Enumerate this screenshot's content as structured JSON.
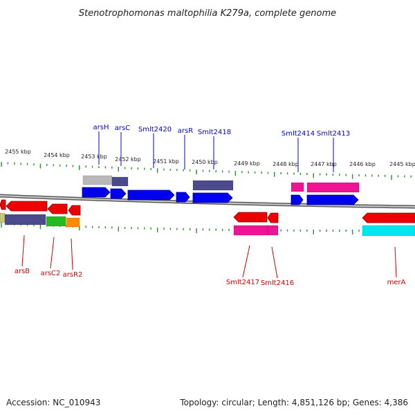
{
  "title": "Stenotrophomonas maltophilia K279a, complete genome",
  "footer": {
    "accession": "Accession: NC_010943",
    "summary": "Topology: circular; Length: 4,851,126 bp; Genes: 4,386"
  },
  "colors": {
    "background": "#ffffff",
    "axis_ticks": "#2e8b2e",
    "backbone": "#808080",
    "forward_gene": "#0000ee",
    "reverse_gene": "#ee0000",
    "forward_label": "#0000cc",
    "reverse_label": "#cc0000"
  },
  "kbp_labels": [
    "2455 kbp",
    "2454 kbp",
    "2453 kbp",
    "2452 kbp",
    "2451 kbp",
    "2450 kbp",
    "2449 kbp",
    "2448 kbp",
    "2447 kbp",
    "2446 kbp",
    "2445 kbp"
  ],
  "forward_gene_labels": [
    "arsH",
    "arsC",
    "Smlt2420",
    "arsR",
    "Smlt2418",
    "Smlt2414",
    "Smlt2413"
  ],
  "reverse_gene_labels": [
    "arsB",
    "arsC2",
    "arsR2",
    "Smlt2417",
    "Smlt2416",
    "merA"
  ]
}
